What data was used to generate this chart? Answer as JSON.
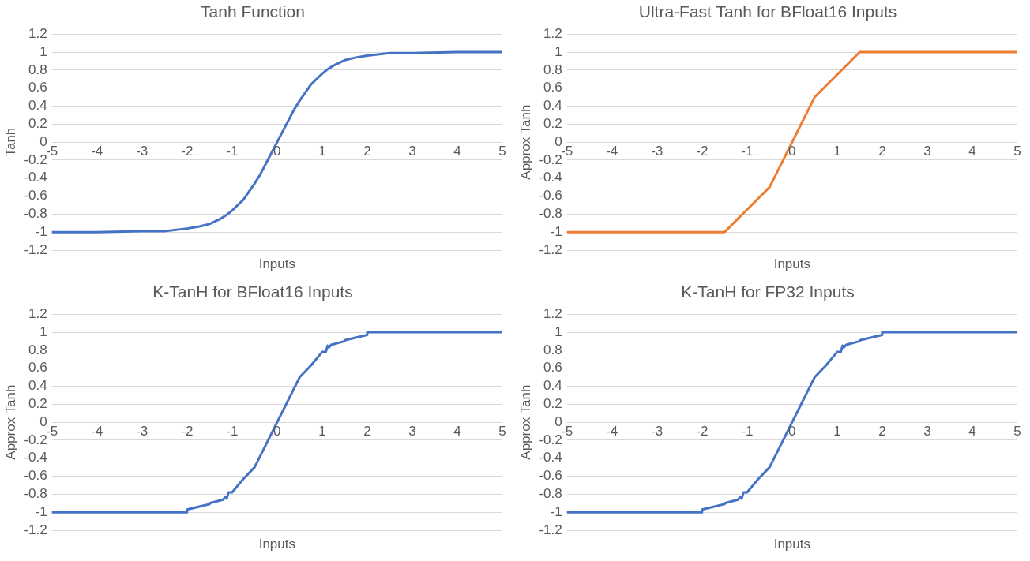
{
  "chart_data": [
    {
      "type": "line",
      "title": "Tanh Function",
      "xlabel": "Inputs",
      "ylabel": "Tanh",
      "xlim": [
        -5,
        5
      ],
      "xticks": [
        -5,
        -4,
        -3,
        -2,
        -1,
        0,
        1,
        2,
        3,
        4,
        5
      ],
      "ylim": [
        -1.2,
        1.2
      ],
      "yticks": [
        -1.2,
        -1,
        -0.8,
        -0.6,
        -0.4,
        -0.2,
        0,
        0.2,
        0.4,
        0.6,
        0.8,
        1,
        1.2
      ],
      "grid": "y",
      "legend": false,
      "marker": "none",
      "line_style": "solid",
      "series": [
        {
          "color": "#4472c4",
          "x": [
            -5,
            -4,
            -3,
            -2.5,
            -2,
            -1.75,
            -1.5,
            -1.25,
            -1.125,
            -1,
            -0.875,
            -0.75,
            -0.625,
            -0.5,
            -0.375,
            -0.25,
            -0.125,
            0,
            0.125,
            0.25,
            0.375,
            0.5,
            0.625,
            0.75,
            0.875,
            1,
            1.125,
            1.25,
            1.5,
            1.75,
            2,
            2.5,
            3,
            4,
            5
          ],
          "values": [
            -1,
            -1,
            -0.99,
            -0.99,
            -0.96,
            -0.94,
            -0.91,
            -0.85,
            -0.81,
            -0.76,
            -0.7,
            -0.64,
            -0.55,
            -0.46,
            -0.36,
            -0.24,
            -0.12,
            0,
            0.12,
            0.24,
            0.36,
            0.46,
            0.55,
            0.64,
            0.7,
            0.76,
            0.81,
            0.85,
            0.91,
            0.94,
            0.96,
            0.99,
            0.99,
            1,
            1
          ]
        }
      ]
    },
    {
      "type": "line",
      "title": "Ultra-Fast Tanh for BFloat16 Inputs",
      "xlabel": "Inputs",
      "ylabel": "Approx Tanh",
      "xlim": [
        -5,
        5
      ],
      "xticks": [
        -5,
        -4,
        -3,
        -2,
        -1,
        0,
        1,
        2,
        3,
        4,
        5
      ],
      "ylim": [
        -1.2,
        1.2
      ],
      "yticks": [
        -1.2,
        -1,
        -0.8,
        -0.6,
        -0.4,
        -0.2,
        0,
        0.2,
        0.4,
        0.6,
        0.8,
        1,
        1.2
      ],
      "grid": "y",
      "legend": false,
      "marker": "none",
      "line_style": "solid",
      "series": [
        {
          "color": "#ed7d31",
          "x": [
            -5,
            -1.5,
            -0.5,
            0.5,
            1.5,
            5
          ],
          "values": [
            -1,
            -1,
            -0.5,
            0.5,
            1,
            1
          ]
        }
      ]
    },
    {
      "type": "line",
      "title": "K-TanH for BFloat16 Inputs",
      "xlabel": "Inputs",
      "ylabel": "Approx Tanh",
      "xlim": [
        -5,
        5
      ],
      "xticks": [
        -5,
        -4,
        -3,
        -2,
        -1,
        0,
        1,
        2,
        3,
        4,
        5
      ],
      "ylim": [
        -1.2,
        1.2
      ],
      "yticks": [
        -1.2,
        -1,
        -0.8,
        -0.6,
        -0.4,
        -0.2,
        0,
        0.2,
        0.4,
        0.6,
        0.8,
        1,
        1.2
      ],
      "grid": "y",
      "legend": false,
      "marker": "none",
      "line_style": "solid",
      "series": [
        {
          "color": "#4472c4",
          "x": [
            -5,
            -2,
            -2,
            -1.5,
            -1.5,
            -1.2,
            -1.15,
            -1.12,
            -1.08,
            -1,
            -0.75,
            -0.5,
            0,
            0.5,
            0.75,
            1,
            1.08,
            1.12,
            1.15,
            1.2,
            1.5,
            1.5,
            2,
            2,
            5
          ],
          "values": [
            -1,
            -1,
            -0.97,
            -0.91,
            -0.9,
            -0.86,
            -0.83,
            -0.85,
            -0.78,
            -0.78,
            -0.63,
            -0.5,
            0,
            0.5,
            0.63,
            0.78,
            0.78,
            0.85,
            0.83,
            0.86,
            0.9,
            0.91,
            0.97,
            1,
            1
          ]
        }
      ]
    },
    {
      "type": "line",
      "title": "K-TanH for FP32 Inputs",
      "xlabel": "Inputs",
      "ylabel": "Approx Tanh",
      "xlim": [
        -5,
        5
      ],
      "xticks": [
        -5,
        -4,
        -3,
        -2,
        -1,
        0,
        1,
        2,
        3,
        4,
        5
      ],
      "ylim": [
        -1.2,
        1.2
      ],
      "yticks": [
        -1.2,
        -1,
        -0.8,
        -0.6,
        -0.4,
        -0.2,
        0,
        0.2,
        0.4,
        0.6,
        0.8,
        1,
        1.2
      ],
      "grid": "y",
      "legend": false,
      "marker": "none",
      "line_style": "solid",
      "series": [
        {
          "color": "#4472c4",
          "x": [
            -5,
            -2,
            -2,
            -1.5,
            -1.5,
            -1.2,
            -1.15,
            -1.12,
            -1.08,
            -1,
            -0.75,
            -0.5,
            0,
            0.5,
            0.75,
            1,
            1.08,
            1.12,
            1.15,
            1.2,
            1.5,
            1.5,
            2,
            2,
            5
          ],
          "values": [
            -1,
            -1,
            -0.97,
            -0.91,
            -0.9,
            -0.86,
            -0.83,
            -0.85,
            -0.78,
            -0.78,
            -0.63,
            -0.5,
            0,
            0.5,
            0.63,
            0.78,
            0.78,
            0.85,
            0.83,
            0.86,
            0.9,
            0.91,
            0.97,
            1,
            1
          ]
        }
      ]
    }
  ]
}
